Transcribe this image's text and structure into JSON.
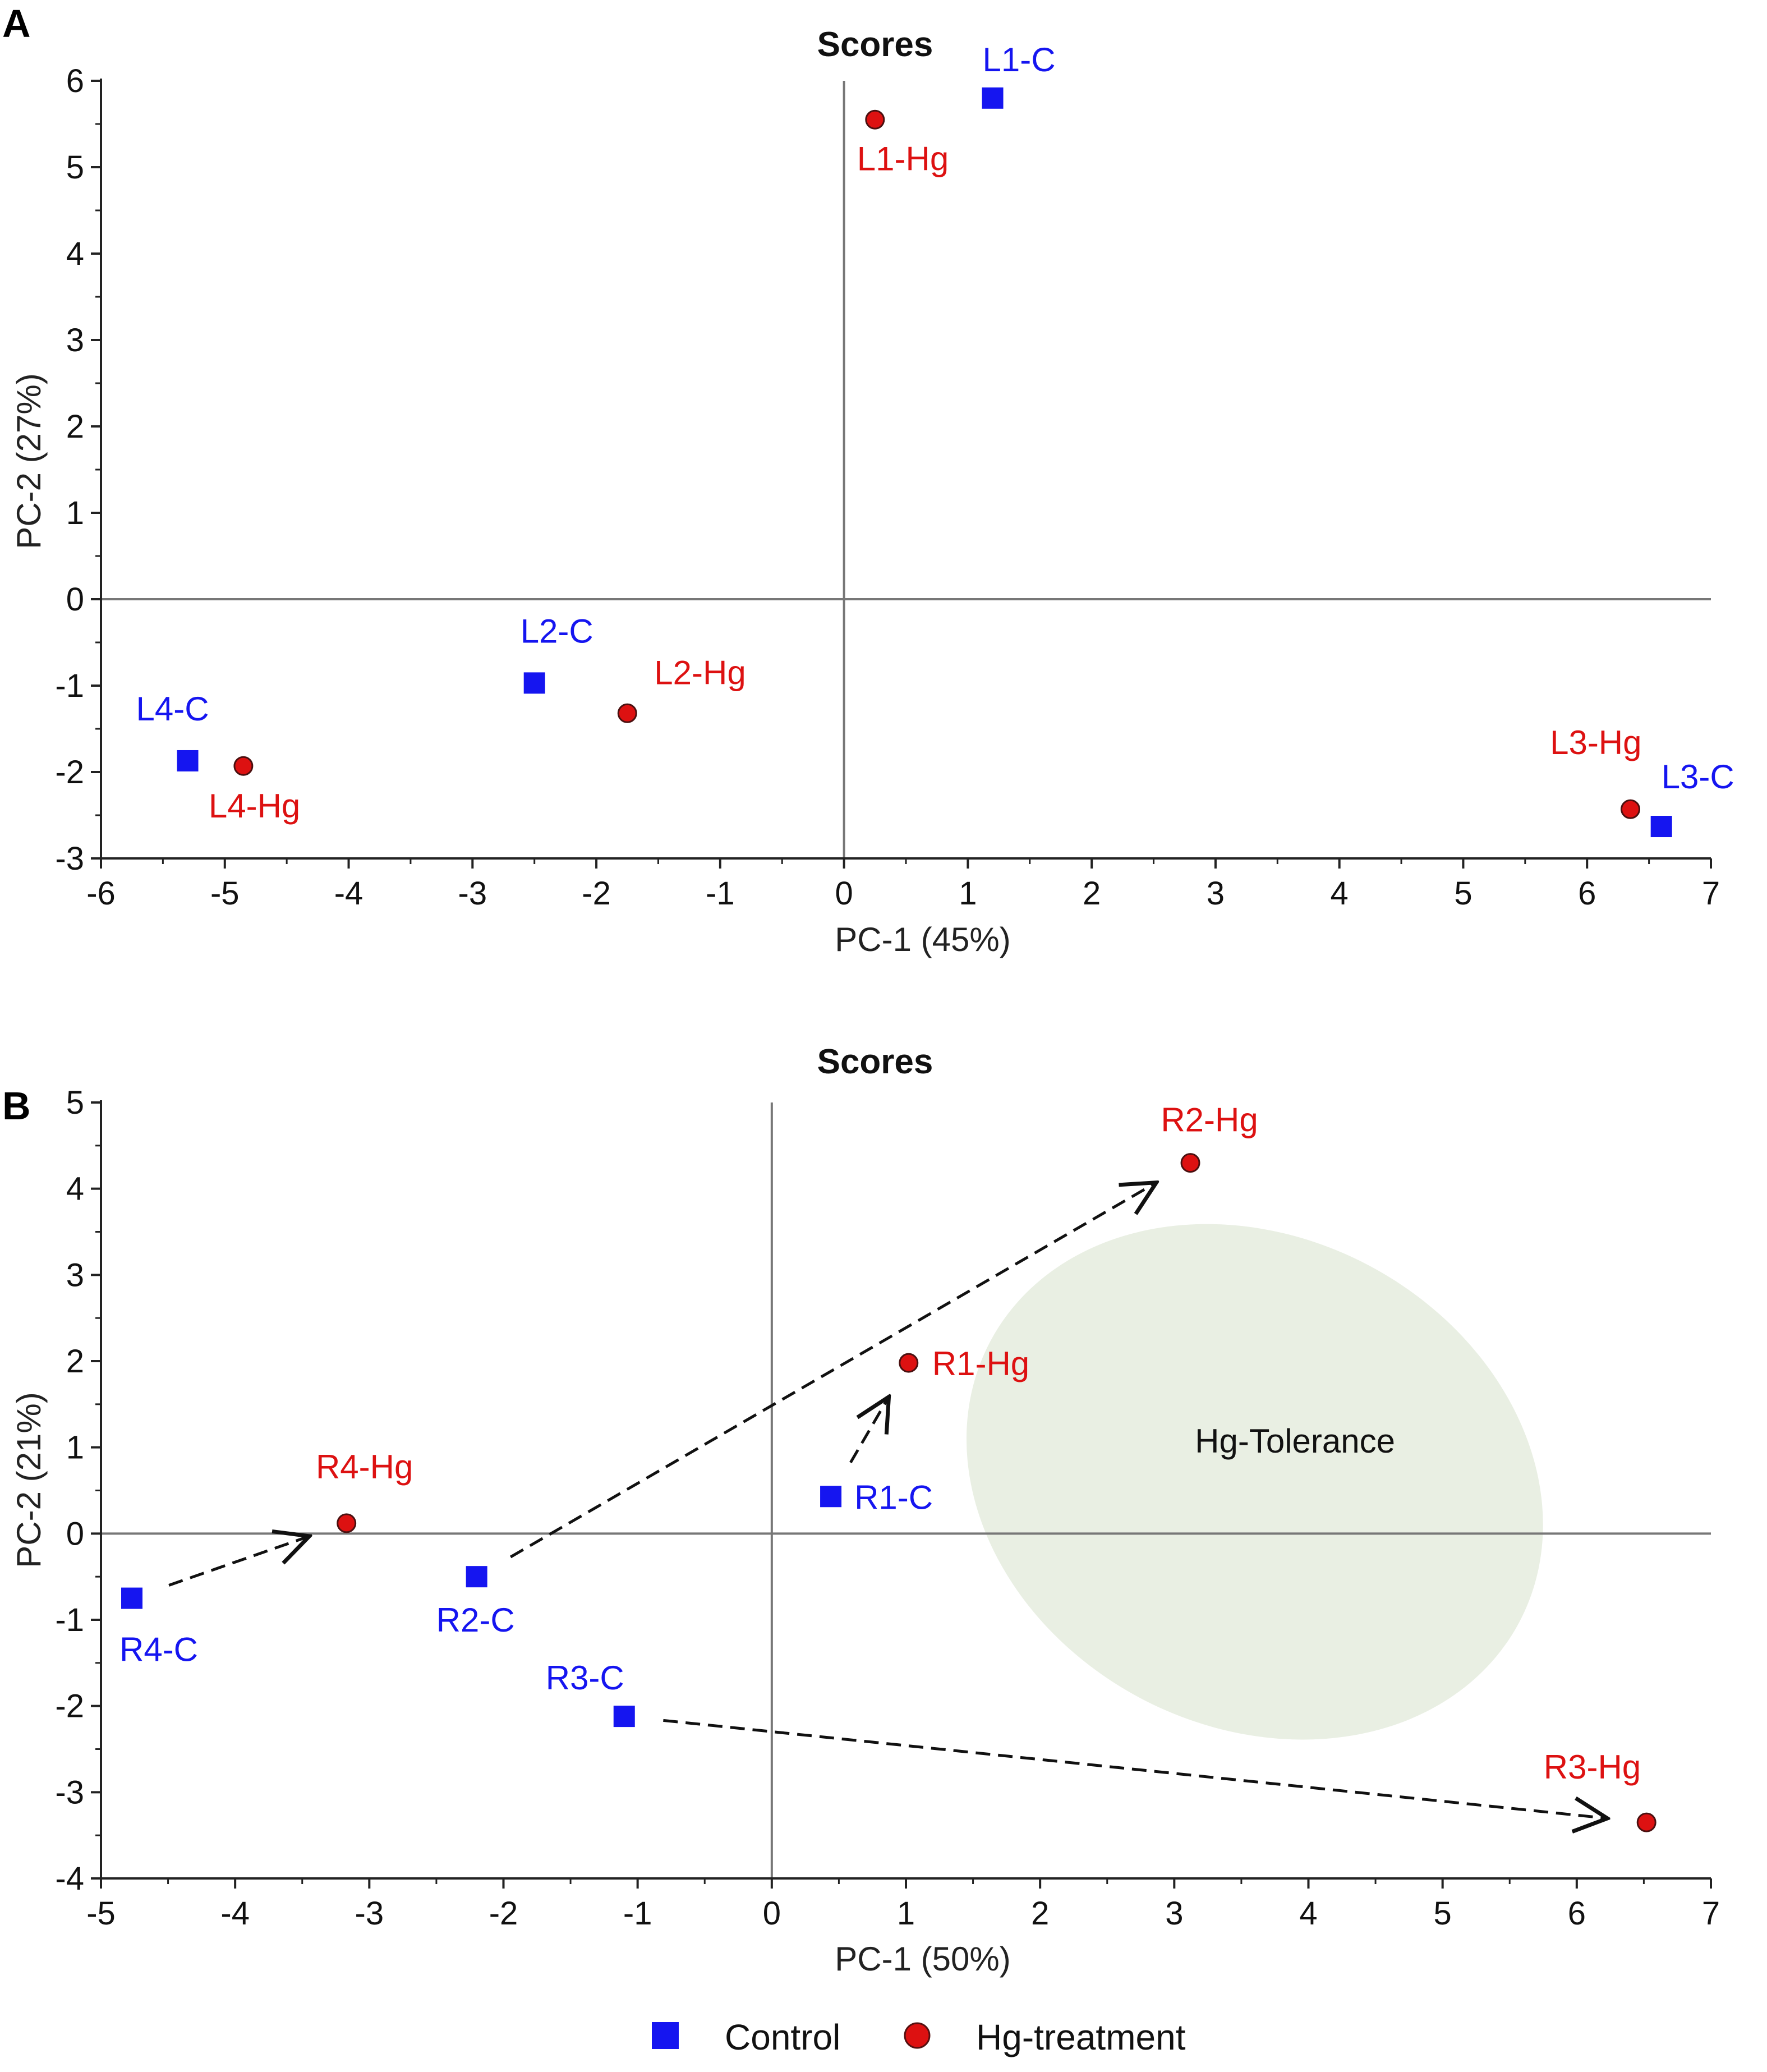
{
  "colors": {
    "control": "#1515f0",
    "treatment": "#dd1111",
    "ellipse": "#e9efe3",
    "axis": "#222222",
    "zeroline": "#777777"
  },
  "legend": {
    "items": [
      {
        "label": "Control",
        "marker": "square",
        "group": "control"
      },
      {
        "label": "Hg-treatment",
        "marker": "circle",
        "group": "treatment"
      }
    ]
  },
  "chart_data": [
    {
      "type": "scatter",
      "panel": "A",
      "title": "Scores",
      "xlabel": "PC-1 (45%)",
      "ylabel": "PC-2 (27%)",
      "xlim": [
        -6,
        7
      ],
      "ylim": [
        -3,
        6
      ],
      "xticks": [
        -6,
        -5,
        -4,
        -3,
        -2,
        -1,
        0,
        1,
        2,
        3,
        4,
        5,
        6,
        7
      ],
      "yticks": [
        -3,
        -2,
        -1,
        0,
        1,
        2,
        3,
        4,
        5,
        6
      ],
      "grid": false,
      "zero_lines": true,
      "points": [
        {
          "label": "L1-C",
          "x": 1.2,
          "y": 5.8,
          "group": "control",
          "label_pos": "above-right"
        },
        {
          "label": "L1-Hg",
          "x": 0.25,
          "y": 5.55,
          "group": "treatment",
          "label_pos": "below-right"
        },
        {
          "label": "L2-C",
          "x": -2.5,
          "y": -0.97,
          "group": "control",
          "label_pos": "above-right"
        },
        {
          "label": "L2-Hg",
          "x": -1.75,
          "y": -1.32,
          "group": "treatment",
          "label_pos": "above-right"
        },
        {
          "label": "L4-C",
          "x": -5.3,
          "y": -1.87,
          "group": "control",
          "label_pos": "above"
        },
        {
          "label": "L4-Hg",
          "x": -4.85,
          "y": -1.93,
          "group": "treatment",
          "label_pos": "below-right"
        },
        {
          "label": "L3-Hg",
          "x": 6.35,
          "y": -2.43,
          "group": "treatment",
          "label_pos": "above-left"
        },
        {
          "label": "L3-C",
          "x": 6.6,
          "y": -2.63,
          "group": "control",
          "label_pos": "above-right"
        }
      ]
    },
    {
      "type": "scatter",
      "panel": "B",
      "title": "Scores",
      "xlabel": "PC-1 (50%)",
      "ylabel": "PC-2 (21%)",
      "xlim": [
        -5,
        7
      ],
      "ylim": [
        -4,
        5
      ],
      "xticks": [
        -5,
        -4,
        -3,
        -2,
        -1,
        0,
        1,
        2,
        3,
        4,
        5,
        6,
        7
      ],
      "yticks": [
        -4,
        -3,
        -2,
        -1,
        0,
        1,
        2,
        3,
        4,
        5
      ],
      "grid": false,
      "zero_lines": true,
      "points": [
        {
          "label": "R2-Hg",
          "x": 3.12,
          "y": 4.3,
          "group": "treatment",
          "label_pos": "above"
        },
        {
          "label": "R1-Hg",
          "x": 1.02,
          "y": 1.98,
          "group": "treatment",
          "label_pos": "right"
        },
        {
          "label": "R1-C",
          "x": 0.44,
          "y": 0.43,
          "group": "control",
          "label_pos": "right"
        },
        {
          "label": "R4-Hg",
          "x": -3.17,
          "y": 0.12,
          "group": "treatment",
          "label_pos": "above"
        },
        {
          "label": "R2-C",
          "x": -2.2,
          "y": -0.5,
          "group": "control",
          "label_pos": "below"
        },
        {
          "label": "R4-C",
          "x": -4.77,
          "y": -0.75,
          "group": "control",
          "label_pos": "below-right"
        },
        {
          "label": "R3-C",
          "x": -1.1,
          "y": -2.12,
          "group": "control",
          "label_pos": "above-left"
        },
        {
          "label": "R3-Hg",
          "x": 6.52,
          "y": -3.35,
          "group": "treatment",
          "label_pos": "above-left"
        }
      ],
      "arrows": [
        {
          "from": "R4-C",
          "to": "R4-Hg"
        },
        {
          "from": "R2-C",
          "to": "R2-Hg"
        },
        {
          "from": "R1-C",
          "to": "R1-Hg"
        },
        {
          "from": "R3-C",
          "to": "R3-Hg"
        }
      ],
      "annotations": [
        {
          "text": "Hg-Tolerance",
          "x": 3.9,
          "y": 1.07
        }
      ],
      "region": {
        "shape": "ellipse",
        "label": "Hg-Tolerance",
        "center_x": 3.6,
        "center_y": 0.6,
        "semi_x": 3.6,
        "semi_y": 4.3,
        "angle_deg": 28
      }
    }
  ]
}
